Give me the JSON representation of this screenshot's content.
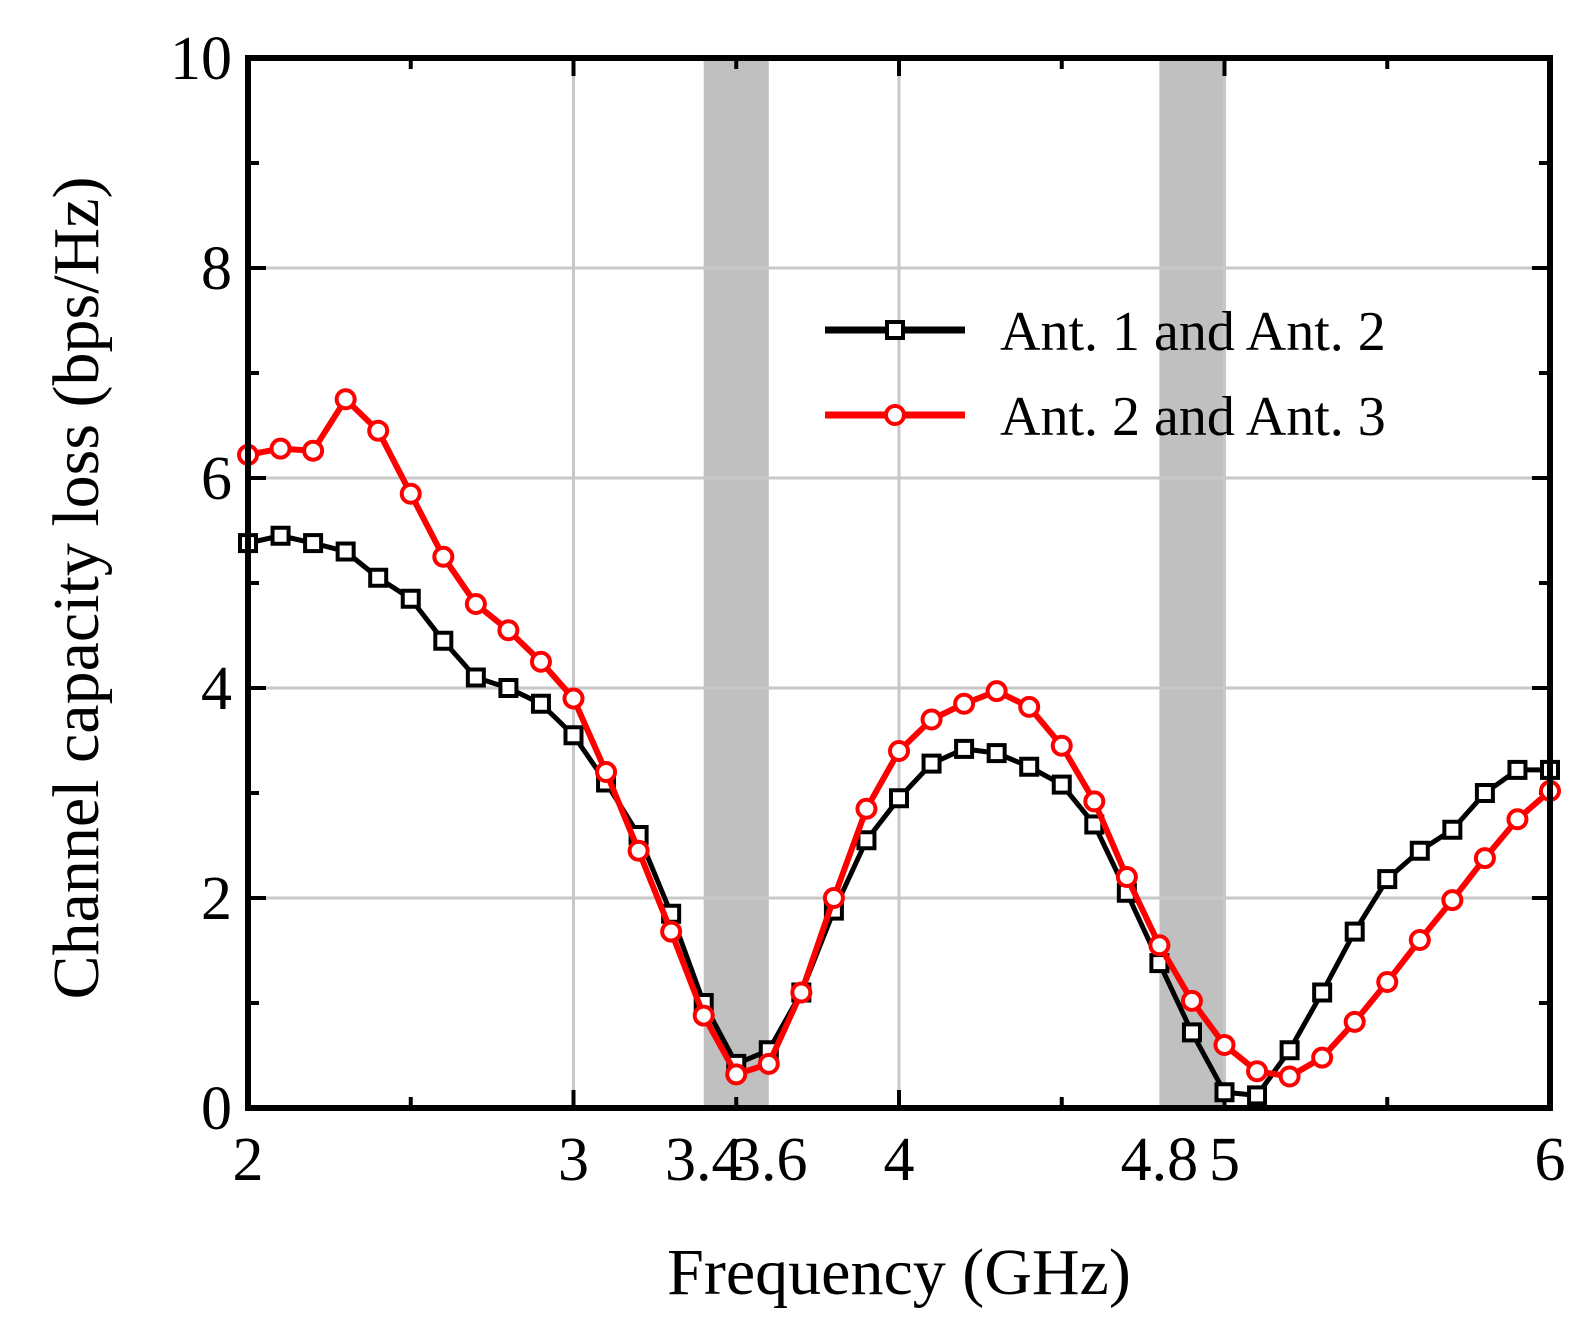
{
  "chart_data": {
    "type": "line",
    "title": "",
    "xlabel": "Frequency (GHz)",
    "ylabel": "Channel capacity loss (bps/Hz)",
    "xlim": [
      2,
      6
    ],
    "ylim": [
      0,
      10
    ],
    "grid": true,
    "x_ticks": [
      2,
      3,
      3.4,
      3.6,
      4,
      4.8,
      5,
      6
    ],
    "x_tick_labels": [
      "2",
      "3",
      "3.4",
      "3.6",
      "4",
      "4.8",
      "5",
      "6"
    ],
    "x_grid": [
      3,
      4,
      5
    ],
    "y_ticks": [
      0,
      2,
      4,
      6,
      8,
      10
    ],
    "y_tick_labels": [
      "0",
      "2",
      "4",
      "6",
      "8",
      "10"
    ],
    "shaded_bands": [
      {
        "from": 3.4,
        "to": 3.6,
        "color": "#c0c0c0"
      },
      {
        "from": 4.8,
        "to": 5.0,
        "color": "#c0c0c0"
      }
    ],
    "legend_position": "top-right",
    "series": [
      {
        "name": "Ant. 1 and Ant. 2",
        "color": "#000000",
        "marker": "square",
        "x": [
          2.0,
          2.1,
          2.2,
          2.3,
          2.4,
          2.5,
          2.6,
          2.7,
          2.8,
          2.9,
          3.0,
          3.1,
          3.2,
          3.3,
          3.4,
          3.5,
          3.6,
          3.7,
          3.8,
          3.9,
          4.0,
          4.1,
          4.2,
          4.3,
          4.4,
          4.5,
          4.6,
          4.7,
          4.8,
          4.9,
          5.0,
          5.1,
          5.2,
          5.3,
          5.4,
          5.5,
          5.6,
          5.7,
          5.8,
          5.9,
          6.0
        ],
        "values": [
          5.38,
          5.45,
          5.38,
          5.3,
          5.05,
          4.85,
          4.45,
          4.1,
          4.0,
          3.85,
          3.55,
          3.1,
          2.6,
          1.85,
          1.0,
          0.42,
          0.55,
          1.1,
          1.88,
          2.55,
          2.95,
          3.28,
          3.42,
          3.38,
          3.25,
          3.08,
          2.7,
          2.05,
          1.38,
          0.72,
          0.15,
          0.12,
          0.55,
          1.1,
          1.68,
          2.18,
          2.45,
          2.65,
          3.0,
          3.22,
          3.22
        ]
      },
      {
        "name": "Ant. 2 and Ant. 3",
        "color": "#ff0000",
        "marker": "circle",
        "x": [
          2.0,
          2.1,
          2.2,
          2.3,
          2.4,
          2.5,
          2.6,
          2.7,
          2.8,
          2.9,
          3.0,
          3.1,
          3.2,
          3.3,
          3.4,
          3.5,
          3.6,
          3.7,
          3.8,
          3.9,
          4.0,
          4.1,
          4.2,
          4.3,
          4.4,
          4.5,
          4.6,
          4.7,
          4.8,
          4.9,
          5.0,
          5.1,
          5.2,
          5.3,
          5.4,
          5.5,
          5.6,
          5.7,
          5.8,
          5.9,
          6.0
        ],
        "values": [
          6.22,
          6.28,
          6.26,
          6.75,
          6.45,
          5.85,
          5.25,
          4.8,
          4.55,
          4.25,
          3.9,
          3.2,
          2.45,
          1.68,
          0.88,
          0.32,
          0.42,
          1.1,
          2.0,
          2.85,
          3.4,
          3.7,
          3.85,
          3.97,
          3.82,
          3.45,
          2.92,
          2.2,
          1.55,
          1.02,
          0.6,
          0.35,
          0.3,
          0.48,
          0.82,
          1.2,
          1.6,
          1.98,
          2.38,
          2.75,
          3.02
        ]
      }
    ]
  }
}
